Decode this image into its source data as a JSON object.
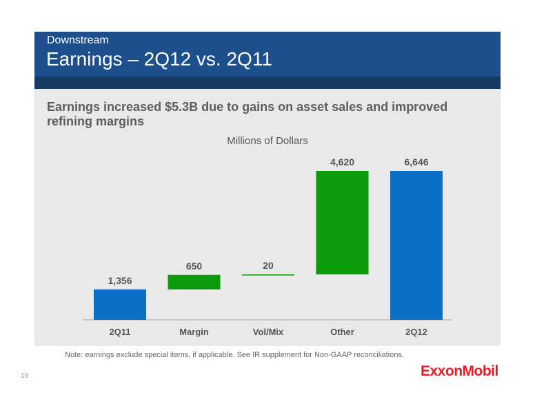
{
  "slide": {
    "subtitle": "Downstream",
    "title": "Earnings – 2Q12 vs. 2Q11",
    "headline": "Earnings increased $5.3B due to gains on asset sales and improved refining margins",
    "note": "Note: earnings exclude special items, if applicable. See IR supplement for Non-GAAP reconciliations.",
    "page_number": "19",
    "logo_text": "ExxonMobil"
  },
  "colors": {
    "header": "#1d4f8c",
    "total_bar": "#0a6fc4",
    "increase_bar": "#0a9a0a",
    "logo": "#e31b23"
  },
  "chart_data": {
    "type": "bar",
    "subtype": "waterfall",
    "title": "Millions of Dollars",
    "categories": [
      "2Q11",
      "Margin",
      "Vol/Mix",
      "Other",
      "2Q12"
    ],
    "values": [
      1356,
      650,
      20,
      4620,
      6646
    ],
    "labels": [
      "1,356",
      "650",
      "20",
      "4,620",
      "6,646"
    ],
    "kinds": [
      "total",
      "delta",
      "delta",
      "delta",
      "total"
    ],
    "ylim": [
      0,
      6646
    ]
  }
}
